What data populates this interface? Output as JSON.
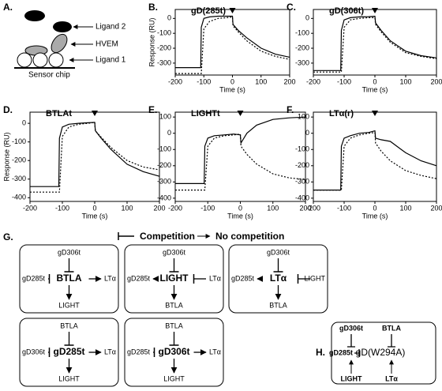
{
  "chart_data": [
    {
      "type": "line",
      "panel": "B.",
      "title": "gD(285t)",
      "x_label": "Time (s)",
      "y_label": "Response (RU)",
      "x": [
        -200,
        -150,
        -111,
        -109,
        -100,
        -80,
        -50,
        -20,
        0,
        2,
        20,
        50,
        100,
        150,
        200
      ],
      "xlim": [
        -200,
        200
      ],
      "xticks": [
        -200,
        -100,
        0,
        100,
        200
      ],
      "ylim": [
        -380,
        60
      ],
      "yticks": [
        -300,
        -200,
        -100,
        0
      ],
      "series": [
        {
          "style": "solid",
          "color": "#000000",
          "values": [
            -330,
            -330,
            -330,
            -60,
            0,
            10,
            15,
            15,
            15,
            -40,
            -80,
            -130,
            -200,
            -240,
            -260
          ]
        },
        {
          "style": "dotted",
          "color": "#000000",
          "values": [
            -370,
            -370,
            -370,
            -370,
            -70,
            -20,
            0,
            5,
            10,
            -50,
            -90,
            -150,
            -220,
            -255,
            -275
          ]
        }
      ]
    },
    {
      "type": "line",
      "panel": "C.",
      "title": "gD(306t)",
      "x_label": "Time (s)",
      "x": [
        -200,
        -150,
        -111,
        -109,
        -100,
        -80,
        -50,
        -20,
        0,
        2,
        20,
        50,
        100,
        150,
        200
      ],
      "xlim": [
        -200,
        200
      ],
      "xticks": [
        -200,
        -100,
        0,
        100,
        200
      ],
      "ylim": [
        -380,
        60
      ],
      "yticks": [
        -300,
        -200,
        -100,
        0
      ],
      "series": [
        {
          "style": "solid",
          "color": "#000000",
          "values": [
            -350,
            -350,
            -350,
            -80,
            -10,
            5,
            10,
            12,
            15,
            -30,
            -80,
            -150,
            -220,
            -250,
            -265
          ]
        },
        {
          "style": "dotted",
          "color": "#000000",
          "values": [
            -360,
            -360,
            -360,
            -360,
            -60,
            -10,
            0,
            5,
            5,
            -40,
            -90,
            -160,
            -230,
            -255,
            -270
          ]
        }
      ]
    },
    {
      "type": "line",
      "panel": "D.",
      "title": "BTLAt",
      "x_label": "Time (s)",
      "y_label": "Response (RU)",
      "x": [
        -200,
        -150,
        -111,
        -109,
        -100,
        -80,
        -50,
        -20,
        0,
        2,
        20,
        50,
        100,
        150,
        200
      ],
      "xlim": [
        -200,
        200
      ],
      "xticks": [
        -200,
        -100,
        0,
        100,
        200
      ],
      "ylim": [
        -420,
        60
      ],
      "yticks": [
        -400,
        -300,
        -200,
        -100,
        0
      ],
      "series": [
        {
          "style": "solid",
          "color": "#000000",
          "values": [
            -340,
            -340,
            -340,
            -80,
            -20,
            -5,
            0,
            3,
            5,
            -40,
            -80,
            -140,
            -220,
            -260,
            -285
          ]
        },
        {
          "style": "dotted",
          "color": "#000000",
          "values": [
            -370,
            -370,
            -370,
            -370,
            -70,
            -20,
            -5,
            0,
            5,
            -40,
            -75,
            -130,
            -200,
            -235,
            -250
          ]
        }
      ]
    },
    {
      "type": "line",
      "panel": "E.",
      "title": "LIGHTt",
      "x_label": "Time (s)",
      "x": [
        -200,
        -150,
        -111,
        -109,
        -100,
        -80,
        -50,
        -20,
        0,
        2,
        20,
        50,
        100,
        150,
        200
      ],
      "xlim": [
        -200,
        200
      ],
      "xticks": [
        -200,
        -100,
        0,
        100,
        200
      ],
      "ylim": [
        -420,
        130
      ],
      "yticks": [
        -400,
        -300,
        -200,
        -100,
        0,
        100
      ],
      "series": [
        {
          "style": "solid",
          "color": "#000000",
          "values": [
            -310,
            -310,
            -310,
            -80,
            -30,
            -15,
            -10,
            -5,
            -10,
            -60,
            0,
            50,
            85,
            95,
            100
          ]
        },
        {
          "style": "dotted",
          "color": "#000000",
          "values": [
            -350,
            -350,
            -350,
            -350,
            -80,
            -30,
            -15,
            -10,
            -5,
            -80,
            -130,
            -190,
            -250,
            -275,
            -285
          ]
        }
      ]
    },
    {
      "type": "line",
      "panel": "F.",
      "title": "LTα(r)",
      "x_label": "Time (s)",
      "x": [
        -200,
        -150,
        -111,
        -109,
        -100,
        -80,
        -50,
        -20,
        0,
        2,
        20,
        50,
        100,
        150,
        200
      ],
      "xlim": [
        -200,
        200
      ],
      "xticks": [
        -200,
        -100,
        0,
        100,
        200
      ],
      "ylim": [
        -420,
        130
      ],
      "yticks": [
        -400,
        -300,
        -200,
        -100,
        0,
        100
      ],
      "series": [
        {
          "style": "solid",
          "color": "#000000",
          "values": [
            -350,
            -350,
            -350,
            -80,
            -30,
            -15,
            0,
            5,
            15,
            -30,
            -40,
            -50,
            -120,
            -170,
            -200
          ]
        },
        {
          "style": "dotted",
          "color": "#000000",
          "values": [
            -350,
            -350,
            -350,
            -350,
            -80,
            -30,
            -10,
            0,
            5,
            -60,
            -110,
            -170,
            -230,
            -260,
            -280
          ]
        }
      ]
    }
  ],
  "diagram_a": {
    "panel": "A.",
    "ligand2": "Ligand 2",
    "hvem": "HVEM",
    "ligand1": "Ligand 1",
    "chip": "Sensor chip"
  },
  "diagram_g": {
    "panel": "G.",
    "competition": "Competition",
    "no_competition": "No competition",
    "boxes": [
      {
        "center": "BTLA",
        "top": "gD306t",
        "left": "gD285t",
        "right": "LTα",
        "bottom": "LIGHT"
      },
      {
        "center": "LIGHT",
        "top": "gD306t",
        "left": "gD285t",
        "right": "LTα",
        "bottom": "BTLA"
      },
      {
        "center": "LTα",
        "top": "gD306t",
        "left": "gD285t",
        "right": "LIGHT",
        "bottom": "BTLA"
      },
      {
        "center": "gD285t",
        "top": "BTLA",
        "left": "gD306t",
        "right": "LTα",
        "bottom": "LIGHT"
      },
      {
        "center": "gD306t",
        "top": "BTLA",
        "left": "gD285t",
        "right": "LTα",
        "bottom": "LIGHT"
      }
    ]
  },
  "diagram_h": {
    "panel": "H.",
    "center": "gD(W294A)",
    "top_left": "gD306t",
    "top_right": "BTLA",
    "left": "gD285t",
    "bottom_left": "LIGHT",
    "bottom_right": "LTα"
  }
}
